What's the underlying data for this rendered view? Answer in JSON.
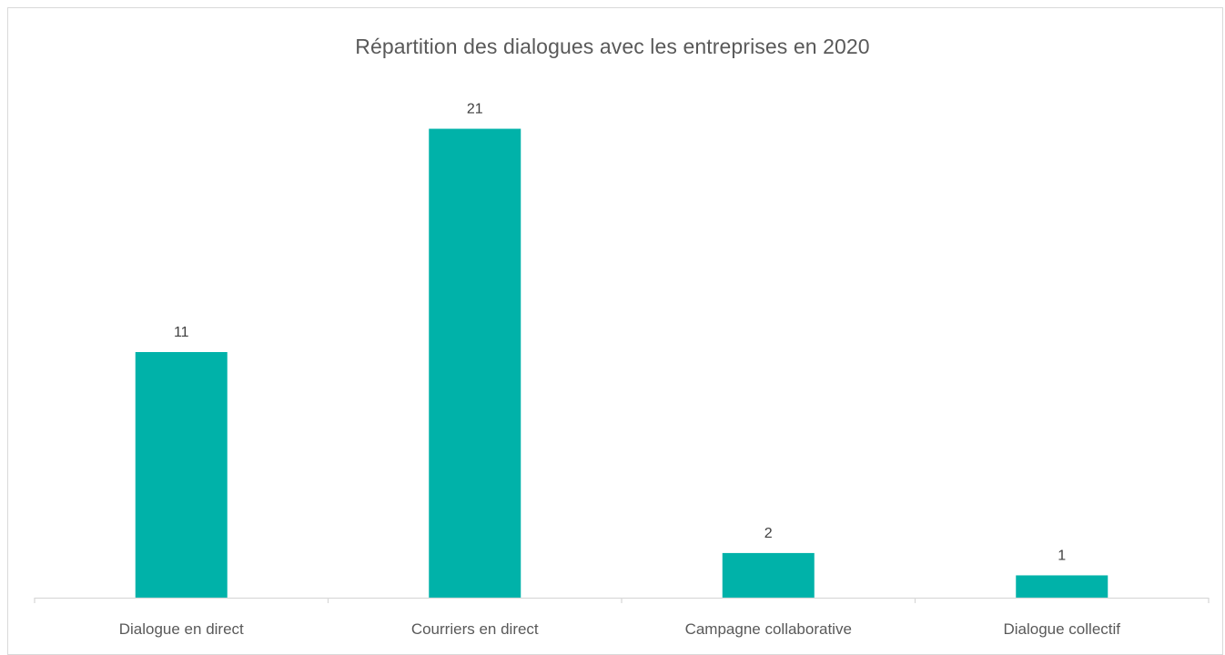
{
  "chart_data": {
    "type": "bar",
    "title": "Répartition des dialogues avec les entreprises en 2020",
    "xlabel": "",
    "ylabel": "",
    "categories": [
      "Dialogue en direct",
      "Courriers en direct",
      "Campagne collaborative",
      "Dialogue collectif"
    ],
    "values": [
      11,
      21,
      2,
      1
    ],
    "data_labels": [
      "11",
      "21",
      "2",
      "1"
    ],
    "ylim": [
      0,
      22
    ],
    "grid": false,
    "legend": "none",
    "bar_color": "#00B2A9",
    "axis_color": "#d9d9d9"
  }
}
